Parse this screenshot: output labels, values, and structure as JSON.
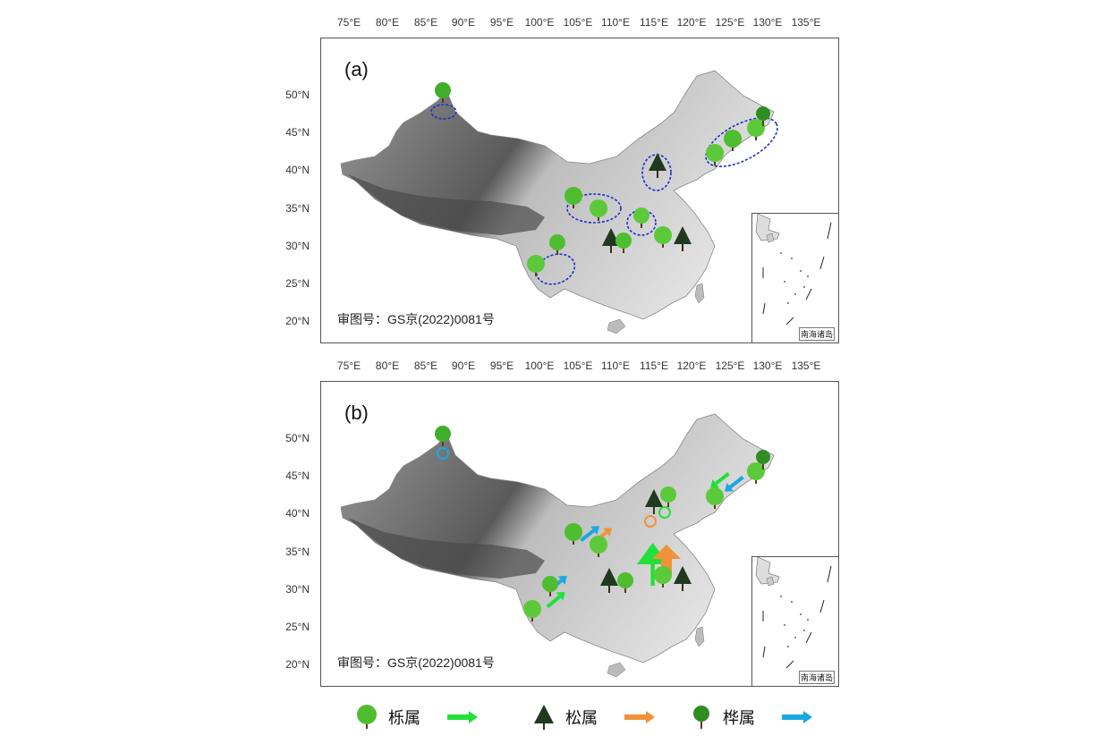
{
  "panels": [
    {
      "label": "(a)",
      "review_text": "审图号：GS京(2022)0081号",
      "inset_label": "南海诸岛"
    },
    {
      "label": "(b)",
      "review_text": "审图号：GS京(2022)0081号",
      "inset_label": "南海诸岛"
    }
  ],
  "axes": {
    "longitude_labels": [
      "75°E",
      "80°E",
      "85°E",
      "90°E",
      "95°E",
      "100°E",
      "105°E",
      "110°E",
      "115°E",
      "120°E",
      "125°E",
      "130°E",
      "135°E"
    ],
    "latitude_labels": [
      "50°N",
      "45°N",
      "40°N",
      "35°N",
      "30°N",
      "25°N",
      "20°N"
    ]
  },
  "legend": [
    {
      "name": "栎属",
      "arrow_color": "#22e03a",
      "tree_icon": "oak-tree-icon"
    },
    {
      "name": "松属",
      "arrow_color": "#f0923a",
      "tree_icon": "pine-tree-icon"
    },
    {
      "name": "桦属",
      "arrow_color": "#1aa8e0",
      "tree_icon": "birch-tree-icon"
    }
  ],
  "colors": {
    "oak": "#22e03a",
    "pine": "#f0923a",
    "birch": "#1aa8e0",
    "circle_a": "#1a2fd0"
  }
}
